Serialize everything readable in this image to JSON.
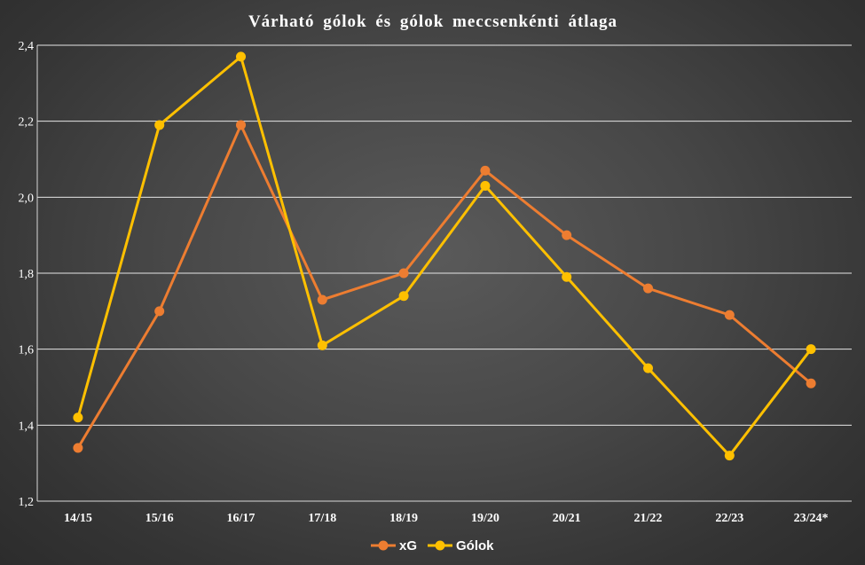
{
  "chart_data": {
    "type": "line",
    "title": "Várható gólok és gólok meccsenkénti átlaga",
    "xlabel": "",
    "ylabel": "",
    "categories": [
      "14/15",
      "15/16",
      "16/17",
      "17/18",
      "18/19",
      "19/20",
      "20/21",
      "21/22",
      "22/23",
      "23/24*"
    ],
    "ylim": [
      1.2,
      2.4
    ],
    "yticks": [
      "1,2",
      "1,4",
      "1,6",
      "1,8",
      "2,0",
      "2,2",
      "2,4"
    ],
    "grid": true,
    "legend_position": "bottom",
    "series": [
      {
        "name": "xG",
        "color": "#ED7D31",
        "values": [
          1.34,
          1.7,
          2.19,
          1.73,
          1.8,
          2.07,
          1.9,
          1.76,
          1.69,
          1.51
        ]
      },
      {
        "name": "Gólok",
        "color": "#FFC000",
        "values": [
          1.42,
          2.19,
          2.37,
          1.61,
          1.74,
          2.03,
          1.79,
          1.55,
          1.32,
          1.6
        ]
      }
    ]
  }
}
